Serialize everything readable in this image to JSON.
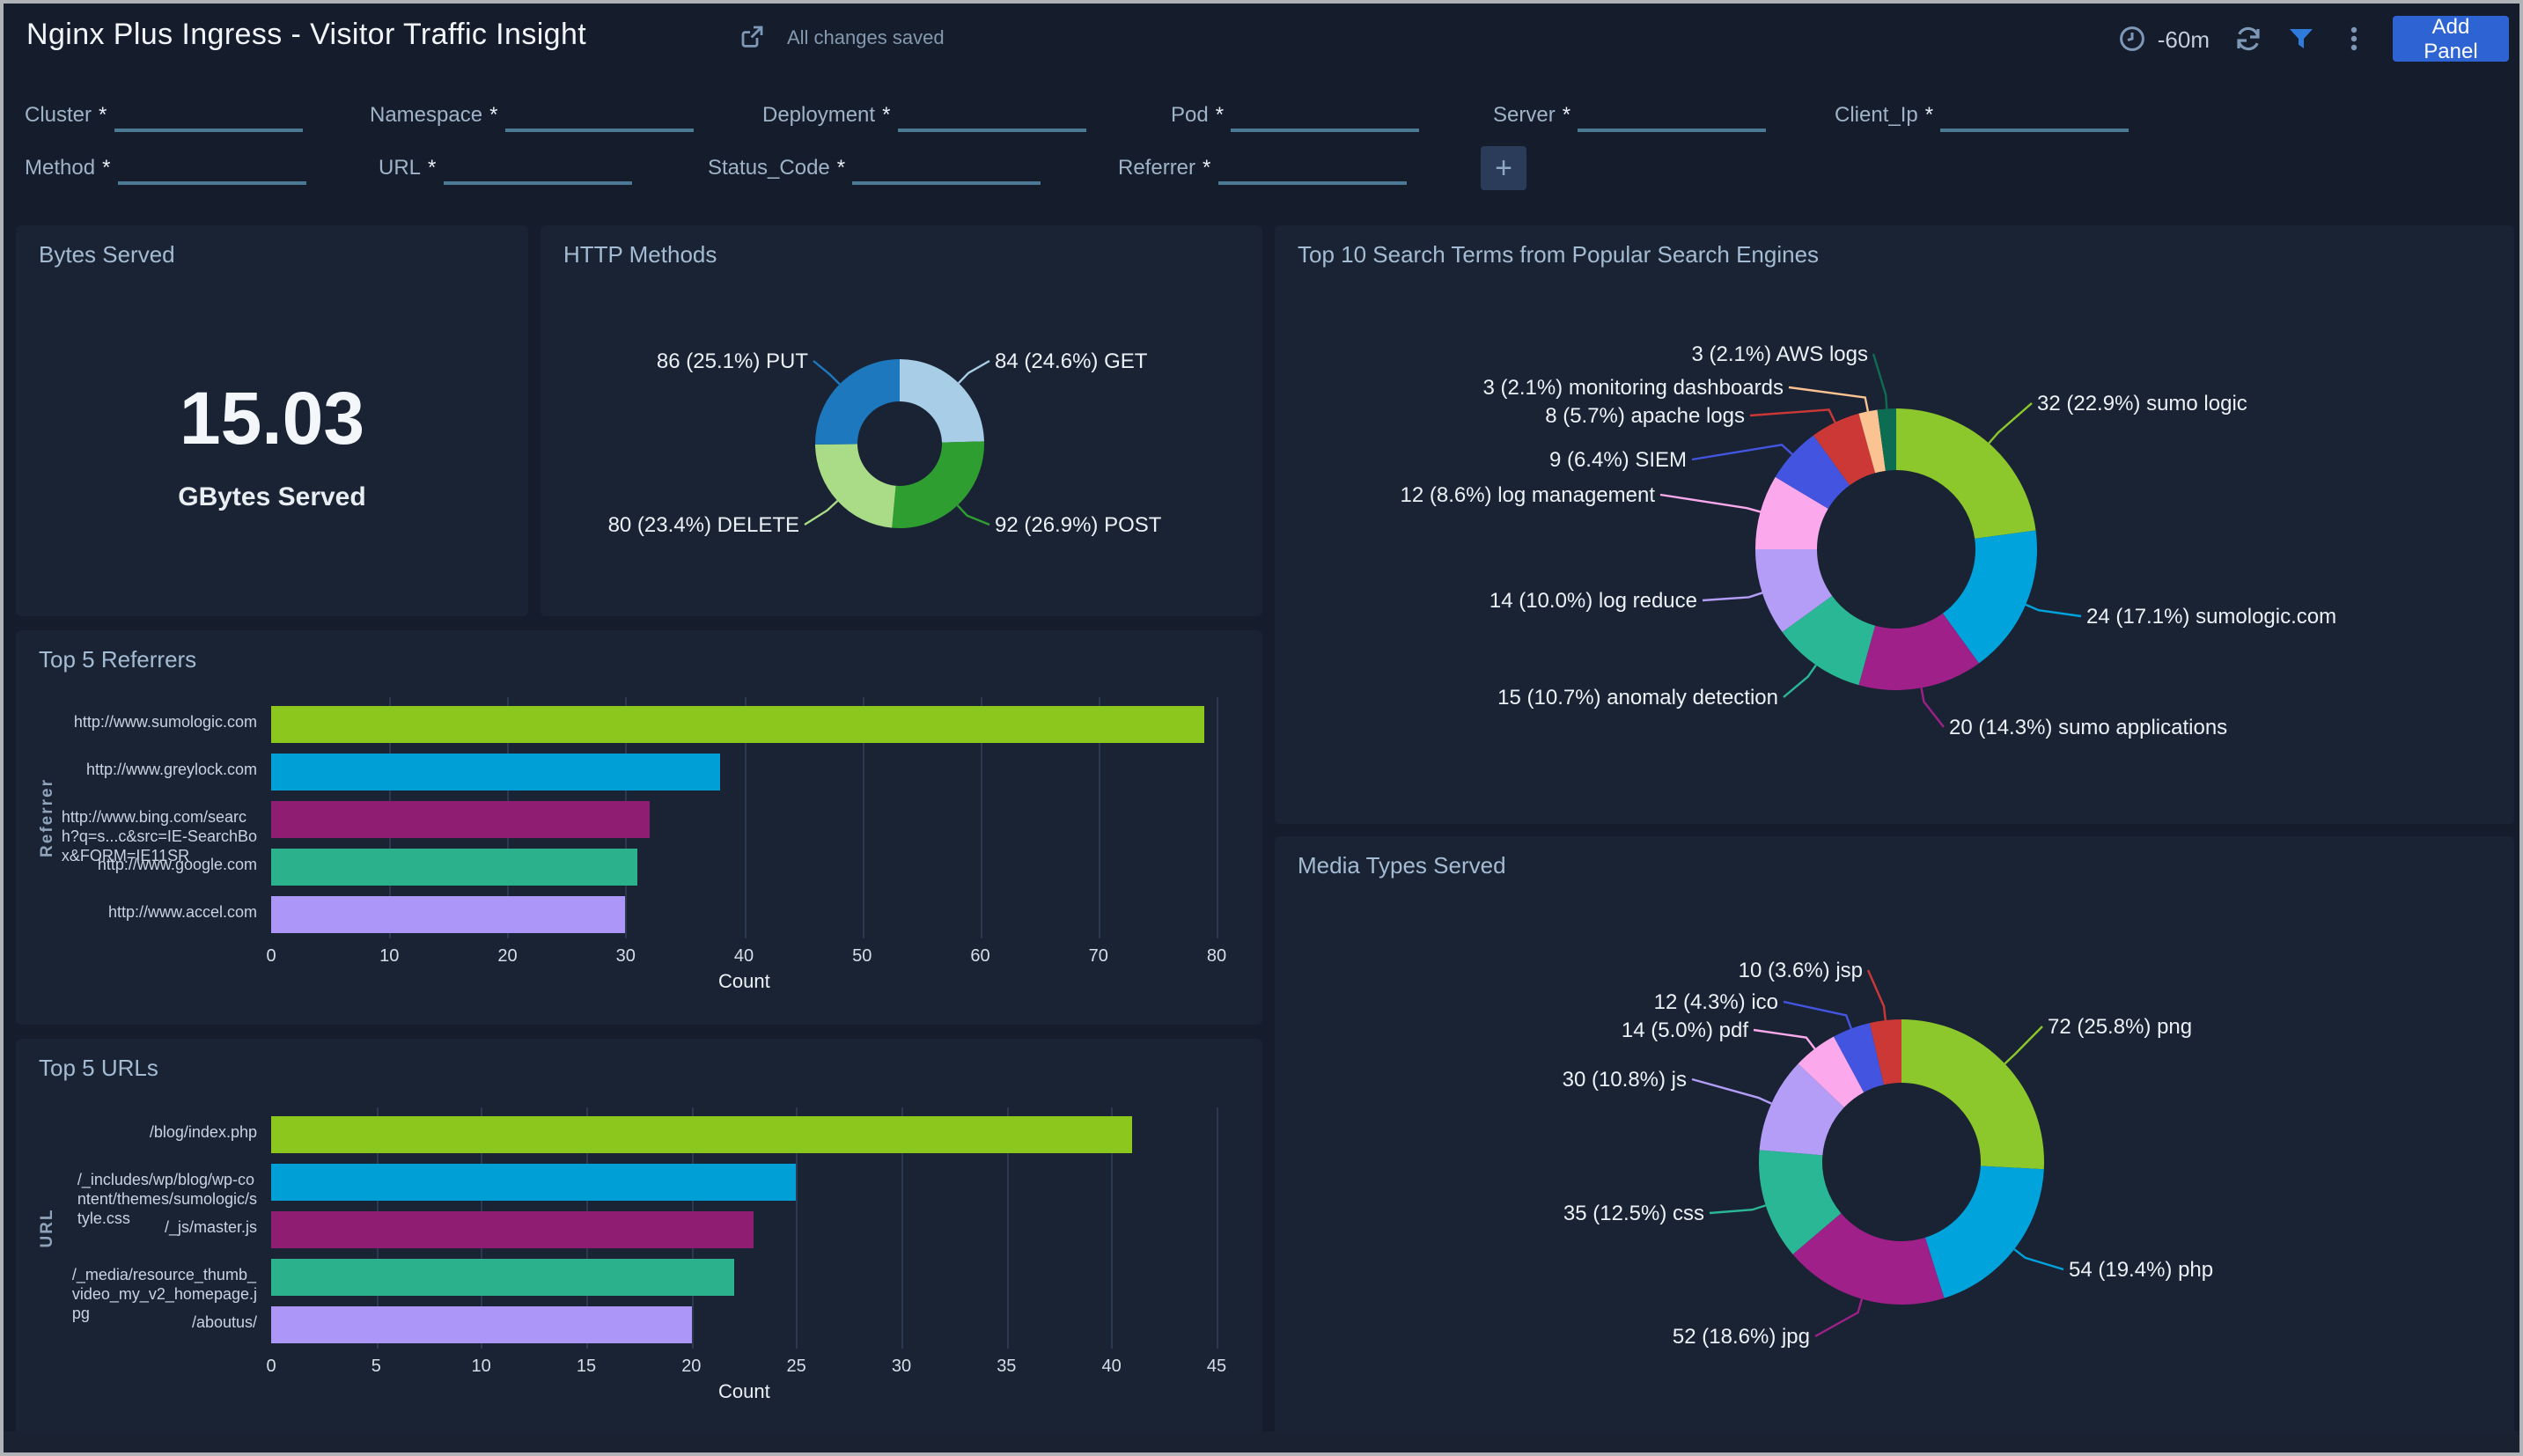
{
  "header": {
    "title": "Nginx Plus Ingress - Visitor Traffic Insight",
    "saved_status": "All changes saved",
    "time_range": "-60m",
    "add_panel_label": "Add Panel"
  },
  "filters": {
    "row1": [
      {
        "label": "Cluster",
        "req": "*"
      },
      {
        "label": "Namespace",
        "req": "*"
      },
      {
        "label": "Deployment",
        "req": "*"
      },
      {
        "label": "Pod",
        "req": "*"
      },
      {
        "label": "Server",
        "req": "*"
      },
      {
        "label": "Client_Ip",
        "req": "*"
      }
    ],
    "row2": [
      {
        "label": "Method",
        "req": "*"
      },
      {
        "label": "URL",
        "req": "*"
      },
      {
        "label": "Status_Code",
        "req": "*"
      },
      {
        "label": "Referrer",
        "req": "*"
      }
    ],
    "add_filter_label": "+"
  },
  "panels": {
    "bytes_served": {
      "title": "Bytes Served",
      "value": "15.03",
      "unit_label": "GBytes Served"
    }
  },
  "chart_data": [
    {
      "id": "http_methods",
      "type": "pie",
      "title": "HTTP Methods",
      "slices": [
        {
          "name": "GET",
          "value": 84,
          "pct": "24.6"
        },
        {
          "name": "POST",
          "value": 92,
          "pct": "26.9"
        },
        {
          "name": "DELETE",
          "value": 80,
          "pct": "23.4"
        },
        {
          "name": "PUT",
          "value": 86,
          "pct": "25.1"
        }
      ],
      "colors": [
        "#A8CDE6",
        "#2E9E31",
        "#AADC87",
        "#1D78BE"
      ]
    },
    {
      "id": "search_terms",
      "type": "pie",
      "title": "Top 10 Search Terms from Popular Search Engines",
      "slices": [
        {
          "name": "sumo logic",
          "value": 32,
          "pct": "22.9"
        },
        {
          "name": "sumologic.com",
          "value": 24,
          "pct": "17.1"
        },
        {
          "name": "sumo applications",
          "value": 20,
          "pct": "14.3"
        },
        {
          "name": "anomaly detection",
          "value": 15,
          "pct": "10.7"
        },
        {
          "name": "log reduce",
          "value": 14,
          "pct": "10.0"
        },
        {
          "name": "log management",
          "value": 12,
          "pct": "8.6"
        },
        {
          "name": "SIEM",
          "value": 9,
          "pct": "6.4"
        },
        {
          "name": "apache logs",
          "value": 8,
          "pct": "5.7"
        },
        {
          "name": "monitoring dashboards",
          "value": 3,
          "pct": "2.1"
        },
        {
          "name": "AWS logs",
          "value": 3,
          "pct": "2.1"
        }
      ],
      "colors": [
        "#8CC72B",
        "#00A3DB",
        "#9E2088",
        "#29B795",
        "#B39DF6",
        "#FBA8EC",
        "#4355E0",
        "#CB3836",
        "#FBC392",
        "#0D6D52"
      ]
    },
    {
      "id": "top_referrers",
      "type": "bar",
      "title": "Top 5 Referrers",
      "categories": [
        "http://www.sumologic.com",
        "http://www.greylock.com",
        "http://www.bing.com/search?q=s...c&src=IE-SearchBox&FORM=IE11SR",
        "http://www.google.com",
        "http://www.accel.com"
      ],
      "label_lines": [
        [
          "http://www.sumologic.com"
        ],
        [
          "http://www.greylock.com"
        ],
        [
          "http://www.bing.com/searc",
          "h?q=s...c&src=IE-SearchBo",
          "x&FORM=IE11SR"
        ],
        [
          "http://www.google.com"
        ],
        [
          "http://www.accel.com"
        ]
      ],
      "values": [
        79,
        38,
        32,
        31,
        30
      ],
      "ticks": [
        0,
        10,
        20,
        30,
        40,
        50,
        60,
        70,
        80
      ],
      "xlabel": "Count",
      "ylabel": "Referrer",
      "xlim": [
        0,
        80
      ],
      "colors": [
        "#8CC71E",
        "#00A0D6",
        "#8F1D72",
        "#2BB28C",
        "#AC97F9"
      ]
    },
    {
      "id": "top_urls",
      "type": "bar",
      "title": "Top 5 URLs",
      "categories": [
        "/blog/index.php",
        "/_includes/wp/blog/wp-content/themes/sumologic/style.css",
        "/_js/master.js",
        "/_media/resource_thumb_video_my_v2_homepage.jpg",
        "/aboutus/"
      ],
      "label_lines": [
        [
          "/blog/index.php"
        ],
        [
          "/_includes/wp/blog/wp-co",
          "ntent/themes/sumologic/s",
          "tyle.css"
        ],
        [
          "/_js/master.js"
        ],
        [
          "/_media/resource_thumb_",
          "video_my_v2_homepage.j",
          "pg"
        ],
        [
          "/aboutus/"
        ]
      ],
      "values": [
        41,
        25,
        23,
        22,
        20
      ],
      "ticks": [
        0,
        5,
        10,
        15,
        20,
        25,
        30,
        35,
        40,
        45
      ],
      "xlabel": "Count",
      "ylabel": "URL",
      "xlim": [
        0,
        45
      ],
      "colors": [
        "#8CC71E",
        "#00A0D6",
        "#8F1D72",
        "#2BB28C",
        "#AC97F9"
      ]
    },
    {
      "id": "media_types",
      "type": "pie",
      "title": "Media Types Served",
      "slices": [
        {
          "name": "png",
          "value": 72,
          "pct": "25.8"
        },
        {
          "name": "php",
          "value": 54,
          "pct": "19.4"
        },
        {
          "name": "jpg",
          "value": 52,
          "pct": "18.6"
        },
        {
          "name": "css",
          "value": 35,
          "pct": "12.5"
        },
        {
          "name": "js",
          "value": 30,
          "pct": "10.8"
        },
        {
          "name": "pdf",
          "value": 14,
          "pct": "5.0"
        },
        {
          "name": "ico",
          "value": 12,
          "pct": "4.3"
        },
        {
          "name": "jsp",
          "value": 10,
          "pct": "3.6"
        }
      ],
      "colors": [
        "#8CC72B",
        "#00A3DB",
        "#9E2088",
        "#29B795",
        "#B39DF6",
        "#FBA8EC",
        "#4355E0",
        "#CB3836"
      ]
    }
  ]
}
